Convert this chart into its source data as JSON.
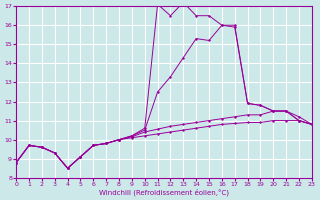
{
  "xlabel": "Windchill (Refroidissement éolien,°C)",
  "background_color": "#cce8e8",
  "grid_color": "#ffffff",
  "line_color": "#990099",
  "xlim": [
    0,
    23
  ],
  "ylim": [
    8,
    17
  ],
  "xticks": [
    0,
    1,
    2,
    3,
    4,
    5,
    6,
    7,
    8,
    9,
    10,
    11,
    12,
    13,
    14,
    15,
    16,
    17,
    18,
    19,
    20,
    21,
    22,
    23
  ],
  "yticks": [
    8,
    9,
    10,
    11,
    12,
    13,
    14,
    15,
    16,
    17
  ],
  "line1_x": [
    0,
    1,
    2,
    3,
    4,
    5,
    6,
    7,
    8,
    9,
    10,
    11,
    12,
    13,
    14,
    15,
    16,
    17,
    18,
    19,
    20,
    21,
    22,
    23
  ],
  "line1_y": [
    8.8,
    9.7,
    9.6,
    9.3,
    8.5,
    9.1,
    9.7,
    9.8,
    10.0,
    10.1,
    10.2,
    10.3,
    10.4,
    10.5,
    10.6,
    10.7,
    10.8,
    10.85,
    10.9,
    10.9,
    11.0,
    11.0,
    11.0,
    10.8
  ],
  "line2_x": [
    0,
    1,
    2,
    3,
    4,
    5,
    6,
    7,
    8,
    9,
    10,
    11,
    12,
    13,
    14,
    15,
    16,
    17,
    18,
    19,
    20,
    21,
    22,
    23
  ],
  "line2_y": [
    8.8,
    9.7,
    9.6,
    9.3,
    8.5,
    9.1,
    9.7,
    9.8,
    10.0,
    10.15,
    10.4,
    10.55,
    10.7,
    10.8,
    10.9,
    11.0,
    11.1,
    11.2,
    11.3,
    11.3,
    11.5,
    11.5,
    11.2,
    10.8
  ],
  "line3_x": [
    0,
    1,
    2,
    3,
    4,
    5,
    6,
    7,
    8,
    9,
    10,
    11,
    12,
    13,
    14,
    15,
    16,
    17,
    18,
    19,
    20,
    21,
    22,
    23
  ],
  "line3_y": [
    8.8,
    9.7,
    9.6,
    9.3,
    8.5,
    9.1,
    9.7,
    9.8,
    10.0,
    10.2,
    10.5,
    12.5,
    13.3,
    14.3,
    15.3,
    15.2,
    16.0,
    15.9,
    11.9,
    11.8,
    11.5,
    11.5,
    11.0,
    10.8
  ],
  "line4_x": [
    0,
    1,
    2,
    3,
    4,
    5,
    6,
    7,
    8,
    9,
    10,
    11,
    12,
    13,
    14,
    15,
    16,
    17,
    18,
    19,
    20,
    21,
    22,
    23
  ],
  "line4_y": [
    8.8,
    9.7,
    9.6,
    9.3,
    8.5,
    9.1,
    9.7,
    9.8,
    10.0,
    10.2,
    10.6,
    17.1,
    16.5,
    17.2,
    16.5,
    16.5,
    16.0,
    16.0,
    11.9,
    11.8,
    11.5,
    11.5,
    11.0,
    10.8
  ]
}
